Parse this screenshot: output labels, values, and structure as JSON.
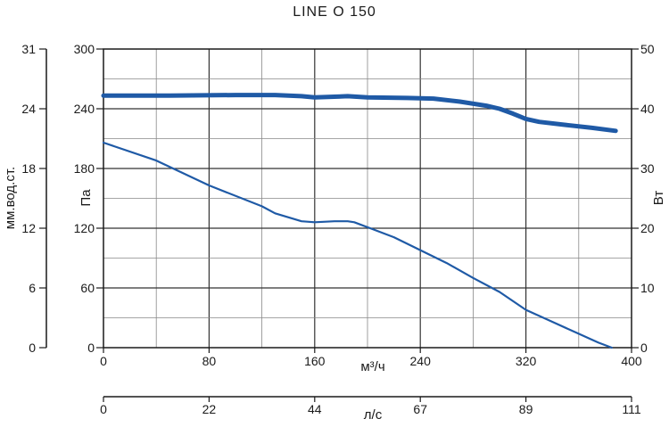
{
  "chart_data": {
    "type": "line",
    "title": "LINE O 150",
    "x": {
      "label": "м³/ч",
      "range": [
        0,
        400
      ],
      "ticks": [
        "0",
        "80",
        "160",
        "240",
        "320",
        "400"
      ]
    },
    "x2": {
      "label": "л/с",
      "range": [
        0,
        111
      ],
      "ticks": [
        "0",
        "22",
        "44",
        "67",
        "89",
        "111"
      ]
    },
    "y_left_outer": {
      "label": "мм.вод.ст.",
      "ticks": [
        "0",
        "6",
        "12",
        "18",
        "24",
        "31"
      ]
    },
    "y_left": {
      "label": "Па",
      "range": [
        0,
        300
      ],
      "ticks": [
        "0",
        "60",
        "120",
        "180",
        "240",
        "300"
      ]
    },
    "y_right": {
      "label": "Вт",
      "range": [
        0,
        50
      ],
      "ticks": [
        "0",
        "10",
        "20",
        "30",
        "40",
        "50"
      ]
    },
    "grid": true,
    "series": [
      {
        "role": "pressure",
        "axis": "y_left",
        "color": "#1f5aa6",
        "points": [
          [
            0,
            206
          ],
          [
            40,
            188
          ],
          [
            80,
            163
          ],
          [
            120,
            142
          ],
          [
            130,
            135
          ],
          [
            150,
            127
          ],
          [
            160,
            126
          ],
          [
            175,
            127
          ],
          [
            185,
            127
          ],
          [
            190,
            126
          ],
          [
            200,
            121
          ],
          [
            220,
            111
          ],
          [
            240,
            98
          ],
          [
            260,
            85
          ],
          [
            280,
            70
          ],
          [
            300,
            56
          ],
          [
            320,
            38
          ],
          [
            340,
            26
          ],
          [
            360,
            14
          ],
          [
            375,
            5
          ],
          [
            385,
            0
          ]
        ]
      },
      {
        "role": "power",
        "axis": "y_right",
        "color": "#1f5aa6",
        "points": [
          [
            0,
            42.2
          ],
          [
            50,
            42.2
          ],
          [
            100,
            42.3
          ],
          [
            130,
            42.3
          ],
          [
            150,
            42.1
          ],
          [
            160,
            41.9
          ],
          [
            185,
            42.1
          ],
          [
            200,
            41.9
          ],
          [
            230,
            41.8
          ],
          [
            250,
            41.7
          ],
          [
            270,
            41.2
          ],
          [
            290,
            40.5
          ],
          [
            300,
            40.0
          ],
          [
            310,
            39.2
          ],
          [
            320,
            38.3
          ],
          [
            330,
            37.8
          ],
          [
            350,
            37.3
          ],
          [
            370,
            36.8
          ],
          [
            388,
            36.3
          ]
        ]
      }
    ]
  }
}
